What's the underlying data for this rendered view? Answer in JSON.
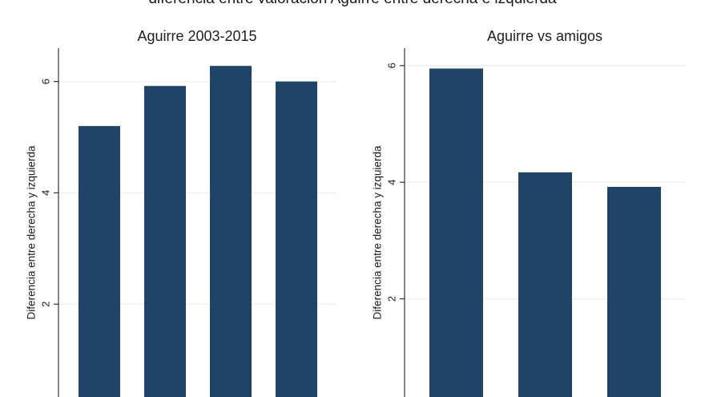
{
  "suptitle": "diferencia entre valoración Aguirre entre derecha e izquierda",
  "colors": {
    "bar": "#1e4467",
    "grid": "#e6ecf0",
    "axis": "#333333"
  },
  "chart_data": [
    {
      "type": "bar",
      "title": "Aguirre 2003-2015",
      "xlabel": "",
      "ylabel": "Diferencia entre derecha y izquierda",
      "categories": [
        "",
        "",
        "",
        ""
      ],
      "values": [
        5.2,
        5.92,
        6.28,
        6.0
      ],
      "yticks": [
        2,
        4,
        6
      ],
      "ylim": [
        0,
        6.6
      ],
      "grid": true,
      "legend": "none"
    },
    {
      "type": "bar",
      "title": "Aguirre vs amigos",
      "xlabel": "",
      "ylabel": "Diferencia entre derecha y izquierda",
      "categories": [
        "",
        "",
        ""
      ],
      "values": [
        5.95,
        4.17,
        3.92
      ],
      "yticks": [
        2,
        4,
        6
      ],
      "ylim": [
        0,
        6.3
      ],
      "grid": true,
      "legend": "none"
    }
  ]
}
